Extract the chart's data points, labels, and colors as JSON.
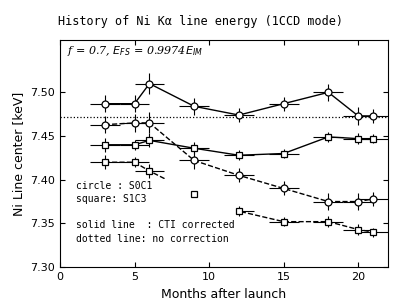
{
  "title": "History of Ni Kα line energy (1CCD mode)",
  "xlabel": "Months after launch",
  "ylabel": "Ni Line center [keV]",
  "xlim": [
    0,
    22
  ],
  "ylim": [
    7.3,
    7.56
  ],
  "yticks": [
    7.3,
    7.35,
    7.4,
    7.45,
    7.5
  ],
  "xticks": [
    0,
    5,
    10,
    15,
    20
  ],
  "hline_y": 7.472,
  "S0C1_solid_x": [
    3,
    5,
    6,
    9,
    12,
    15,
    18,
    20,
    21
  ],
  "S0C1_solid_y": [
    7.487,
    7.487,
    7.51,
    7.484,
    7.474,
    7.487,
    7.5,
    7.473,
    7.473
  ],
  "S0C1_solid_xerr": [
    1,
    1,
    1,
    1,
    1,
    1,
    1,
    1,
    1
  ],
  "S0C1_solid_yerr": [
    0.01,
    0.01,
    0.012,
    0.01,
    0.008,
    0.008,
    0.01,
    0.01,
    0.008
  ],
  "S0C1_dashed_x": [
    3,
    5,
    6,
    9,
    12,
    15,
    18,
    20,
    21
  ],
  "S0C1_dashed_y": [
    7.463,
    7.465,
    7.465,
    7.422,
    7.405,
    7.39,
    7.375,
    7.375,
    7.378
  ],
  "S0C1_dashed_xerr": [
    1,
    1,
    1,
    1,
    1,
    1,
    1,
    1,
    1
  ],
  "S0C1_dashed_yerr": [
    0.01,
    0.01,
    0.012,
    0.01,
    0.008,
    0.008,
    0.01,
    0.01,
    0.008
  ],
  "S1C3_solid_x": [
    3,
    5,
    6,
    9,
    12,
    15,
    18,
    20,
    21
  ],
  "S1C3_solid_y": [
    7.44,
    7.44,
    7.445,
    7.436,
    7.428,
    7.43,
    7.449,
    7.447,
    7.447
  ],
  "S1C3_solid_xerr": [
    1,
    1,
    1,
    1,
    1,
    1,
    1,
    1,
    1
  ],
  "S1C3_solid_yerr": [
    0.008,
    0.006,
    0.008,
    0.007,
    0.006,
    0.005,
    0.006,
    0.006,
    0.005
  ],
  "S1C3_dashed_x": [
    3,
    5,
    6,
    9,
    12,
    15,
    18,
    20,
    21
  ],
  "S1C3_dashed_y": [
    7.42,
    7.42,
    7.41,
    7.384,
    7.364,
    7.352,
    7.352,
    7.343,
    7.34
  ],
  "S1C3_dashed_xerr": [
    1,
    1,
    1,
    1,
    1,
    1,
    1,
    1,
    1
  ],
  "S1C3_dashed_yerr": [
    0.008,
    0.006,
    0.008,
    0.007,
    0.006,
    0.005,
    0.006,
    0.006,
    0.005
  ],
  "legend_circle": "circle : S0C1",
  "legend_square": "square: S1C3",
  "legend_solid": "solid line  : CTI corrected",
  "legend_dotted": "dotted line: no correction",
  "line_color": "black",
  "background_color": "white",
  "subtitle": "f = 0.7, E_FS = 0.9974E_IM"
}
